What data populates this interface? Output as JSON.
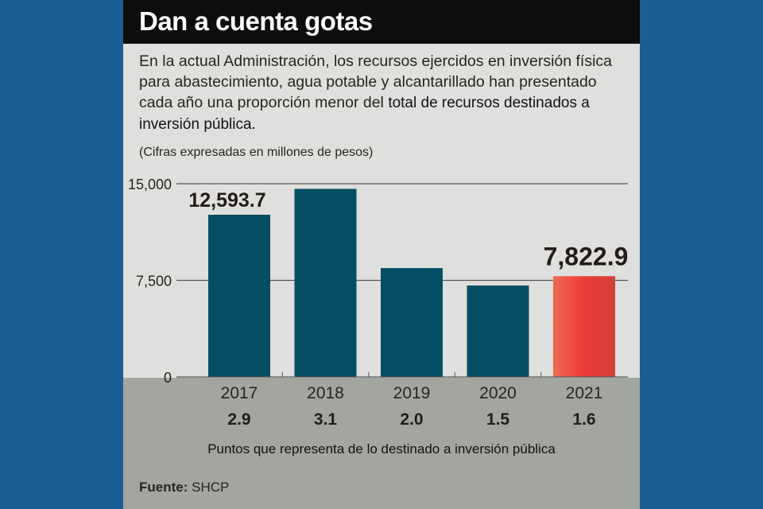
{
  "title": "Dan a cuenta gotas",
  "subtitle_main": "En la actual Administración, los recursos ejercidos en inversión física para abastecimiento, agua potable y alcantarillado han presentado cada año una proporción menor del",
  "subtitle_tail": "total de recursos destinados a inversión pública.",
  "units": "(Cifras expresadas en millones de pesos)",
  "note": "Puntos que representa de lo destinado a inversión pública",
  "source_label": "Fuente:",
  "source_value": "SHCP",
  "colors": {
    "bar": "#034e63",
    "highlight": "#e8403a",
    "background": "#1a5e95"
  },
  "chart_data": {
    "type": "bar",
    "title": "Dan a cuenta gotas",
    "categories": [
      "2017",
      "2018",
      "2019",
      "2020",
      "2021"
    ],
    "values": [
      12593.7,
      14600,
      8450,
      7100,
      7822.9
    ],
    "data_labels": [
      "12,593.7",
      null,
      null,
      null,
      "7,822.9"
    ],
    "secondary_values": [
      "2.9",
      "3.1",
      "2.0",
      "1.5",
      "1.6"
    ],
    "highlight_index": 4,
    "ylim": [
      0,
      15000
    ],
    "yticks": [
      {
        "value": 0,
        "label": "0"
      },
      {
        "value": 7500,
        "label": "7,500"
      },
      {
        "value": 15000,
        "label": "15,000"
      }
    ],
    "xlabel": "",
    "ylabel": "(Cifras expresadas en millones de pesos)",
    "grid": true
  }
}
